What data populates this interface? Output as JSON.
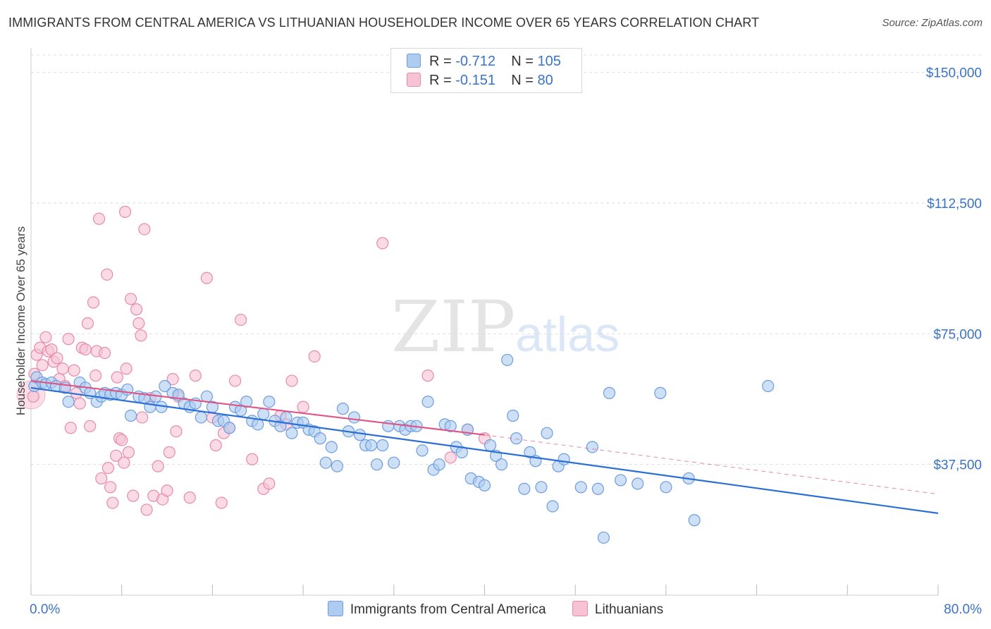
{
  "header": {
    "title": "IMMIGRANTS FROM CENTRAL AMERICA VS LITHUANIAN HOUSEHOLDER INCOME OVER 65 YEARS CORRELATION CHART",
    "source": "Source: ZipAtlas.com"
  },
  "watermark": {
    "zip": "ZIP",
    "atlas": "atlas"
  },
  "legend": {
    "rows": [
      {
        "r_label": "R = ",
        "r_value": "-0.712",
        "n_label": "N = ",
        "n_value": "105"
      },
      {
        "r_label": "R = ",
        "r_value": "-0.151",
        "n_label": "N = ",
        "n_value": "80"
      }
    ]
  },
  "colors": {
    "blue_fill": "#aecbf0",
    "blue_stroke": "#6c9de0",
    "blue_line": "#2c6fd4",
    "pink_fill": "#f7c3d4",
    "pink_stroke": "#e88aab",
    "pink_line": "#e05585",
    "axis_text": "#3a73c8",
    "grid": "#dddddd"
  },
  "chart_data": {
    "type": "scatter",
    "title": "IMMIGRANTS FROM CENTRAL AMERICA VS LITHUANIAN HOUSEHOLDER INCOME OVER 65 YEARS CORRELATION CHART",
    "xlabel": "",
    "ylabel": "Householder Income Over 65 years",
    "xlim": [
      0,
      80
    ],
    "ylim": [
      0,
      155000
    ],
    "x_tick_labels": [
      "0.0%",
      "80.0%"
    ],
    "y_ticks": [
      37500,
      75000,
      112500,
      150000
    ],
    "y_tick_labels": [
      "$37,500",
      "$75,000",
      "$112,500",
      "$150,000"
    ],
    "grid": true,
    "legend_position": "bottom",
    "series": [
      {
        "name": "Immigrants from Central America",
        "color": "#6c9de0",
        "trend": {
          "x": [
            0,
            80
          ],
          "y": [
            59500,
            23500
          ]
        },
        "points": [
          [
            0.3,
            60000
          ],
          [
            0.5,
            62500
          ],
          [
            1.0,
            61000
          ],
          [
            1.3,
            60500
          ],
          [
            1.8,
            61000
          ],
          [
            2.2,
            60000
          ],
          [
            3.0,
            59500
          ],
          [
            3.3,
            55500
          ],
          [
            4.3,
            61000
          ],
          [
            4.8,
            59500
          ],
          [
            5.2,
            58000
          ],
          [
            5.8,
            55500
          ],
          [
            6.2,
            57000
          ],
          [
            6.5,
            58000
          ],
          [
            7.0,
            57500
          ],
          [
            7.5,
            58000
          ],
          [
            8.0,
            57500
          ],
          [
            8.5,
            59000
          ],
          [
            8.8,
            51500
          ],
          [
            9.5,
            57000
          ],
          [
            10.0,
            56500
          ],
          [
            10.5,
            54000
          ],
          [
            11.0,
            57000
          ],
          [
            11.5,
            54000
          ],
          [
            11.8,
            60000
          ],
          [
            12.5,
            58000
          ],
          [
            13.0,
            57500
          ],
          [
            13.5,
            55000
          ],
          [
            14.0,
            54000
          ],
          [
            14.5,
            55000
          ],
          [
            15.0,
            51000
          ],
          [
            15.5,
            57000
          ],
          [
            16.0,
            54000
          ],
          [
            16.5,
            50000
          ],
          [
            17.0,
            50000
          ],
          [
            17.5,
            48000
          ],
          [
            18.0,
            54000
          ],
          [
            18.5,
            53000
          ],
          [
            19.0,
            55500
          ],
          [
            19.5,
            50000
          ],
          [
            20.0,
            49000
          ],
          [
            20.5,
            52000
          ],
          [
            21.0,
            55500
          ],
          [
            21.5,
            50000
          ],
          [
            22.0,
            48500
          ],
          [
            22.5,
            51000
          ],
          [
            23.0,
            46500
          ],
          [
            23.5,
            49500
          ],
          [
            24.0,
            49500
          ],
          [
            24.5,
            47500
          ],
          [
            25.0,
            47000
          ],
          [
            25.5,
            45000
          ],
          [
            26.0,
            38000
          ],
          [
            26.5,
            42500
          ],
          [
            27.0,
            37000
          ],
          [
            27.5,
            53500
          ],
          [
            28.0,
            47000
          ],
          [
            28.5,
            51000
          ],
          [
            29.0,
            46000
          ],
          [
            29.5,
            43000
          ],
          [
            30.0,
            43000
          ],
          [
            30.5,
            37500
          ],
          [
            31.0,
            43000
          ],
          [
            31.5,
            48500
          ],
          [
            32.0,
            38000
          ],
          [
            32.5,
            48500
          ],
          [
            33.0,
            47500
          ],
          [
            33.5,
            48500
          ],
          [
            34.0,
            48500
          ],
          [
            34.5,
            41500
          ],
          [
            35.0,
            55500
          ],
          [
            35.5,
            36000
          ],
          [
            36.0,
            37500
          ],
          [
            36.5,
            49000
          ],
          [
            37.0,
            48500
          ],
          [
            37.5,
            42500
          ],
          [
            38.0,
            41000
          ],
          [
            38.5,
            47500
          ],
          [
            38.8,
            33500
          ],
          [
            39.5,
            32500
          ],
          [
            40.0,
            31500
          ],
          [
            40.5,
            43000
          ],
          [
            41.0,
            40000
          ],
          [
            41.5,
            37500
          ],
          [
            42.0,
            67500
          ],
          [
            42.5,
            51500
          ],
          [
            42.8,
            45000
          ],
          [
            43.5,
            30500
          ],
          [
            44.0,
            41000
          ],
          [
            44.5,
            38500
          ],
          [
            45.0,
            31000
          ],
          [
            45.5,
            46500
          ],
          [
            46.0,
            25500
          ],
          [
            46.5,
            37000
          ],
          [
            47.0,
            39000
          ],
          [
            48.5,
            31000
          ],
          [
            49.5,
            42500
          ],
          [
            50.0,
            30500
          ],
          [
            50.5,
            16500
          ],
          [
            51.0,
            58000
          ],
          [
            52.0,
            33000
          ],
          [
            53.5,
            32000
          ],
          [
            55.5,
            58000
          ],
          [
            56.0,
            31000
          ],
          [
            58.0,
            33500
          ],
          [
            58.5,
            21500
          ],
          [
            65.0,
            60000
          ]
        ]
      },
      {
        "name": "Lithuanians",
        "color": "#e88aab",
        "trend": {
          "x": [
            0,
            40
          ],
          "y": [
            61500,
            46000
          ]
        },
        "trend_ext": {
          "x": [
            40,
            80
          ],
          "y": [
            46000,
            29000
          ]
        },
        "points": [
          [
            0.2,
            57000
          ],
          [
            0.3,
            63500
          ],
          [
            0.5,
            69000
          ],
          [
            0.8,
            71000
          ],
          [
            1.0,
            66000
          ],
          [
            1.3,
            74000
          ],
          [
            1.5,
            70000
          ],
          [
            1.8,
            70500
          ],
          [
            2.0,
            67000
          ],
          [
            2.3,
            68000
          ],
          [
            2.5,
            62000
          ],
          [
            2.8,
            65000
          ],
          [
            3.0,
            60000
          ],
          [
            3.3,
            73500
          ],
          [
            3.5,
            48000
          ],
          [
            3.8,
            64500
          ],
          [
            4.0,
            58000
          ],
          [
            4.3,
            55000
          ],
          [
            4.5,
            71000
          ],
          [
            4.8,
            70500
          ],
          [
            5.0,
            78000
          ],
          [
            5.2,
            48500
          ],
          [
            5.5,
            84000
          ],
          [
            5.7,
            63000
          ],
          [
            5.8,
            70000
          ],
          [
            6.0,
            108000
          ],
          [
            6.2,
            33500
          ],
          [
            6.5,
            69500
          ],
          [
            6.7,
            92000
          ],
          [
            6.8,
            36500
          ],
          [
            7.0,
            31000
          ],
          [
            7.2,
            26500
          ],
          [
            7.5,
            40000
          ],
          [
            7.6,
            62500
          ],
          [
            7.8,
            45000
          ],
          [
            8.0,
            44500
          ],
          [
            8.2,
            38000
          ],
          [
            8.3,
            110000
          ],
          [
            8.4,
            65000
          ],
          [
            8.6,
            41000
          ],
          [
            8.8,
            85000
          ],
          [
            9.0,
            28500
          ],
          [
            9.3,
            82000
          ],
          [
            9.5,
            78000
          ],
          [
            9.7,
            74500
          ],
          [
            9.8,
            51000
          ],
          [
            10.0,
            105000
          ],
          [
            10.2,
            24500
          ],
          [
            10.5,
            56500
          ],
          [
            10.8,
            28500
          ],
          [
            11.2,
            37000
          ],
          [
            11.6,
            27500
          ],
          [
            12.0,
            30000
          ],
          [
            12.2,
            41000
          ],
          [
            12.5,
            62000
          ],
          [
            12.8,
            47000
          ],
          [
            13.0,
            57000
          ],
          [
            14.0,
            28000
          ],
          [
            14.5,
            63000
          ],
          [
            15.5,
            91000
          ],
          [
            16.0,
            51000
          ],
          [
            16.3,
            43000
          ],
          [
            16.8,
            26500
          ],
          [
            17.0,
            46500
          ],
          [
            17.5,
            48000
          ],
          [
            18.0,
            61500
          ],
          [
            18.5,
            79000
          ],
          [
            19.5,
            39000
          ],
          [
            20.5,
            30500
          ],
          [
            21.0,
            32000
          ],
          [
            22.0,
            51500
          ],
          [
            22.5,
            49000
          ],
          [
            23.0,
            61500
          ],
          [
            24.0,
            54000
          ],
          [
            25.0,
            68500
          ],
          [
            31.0,
            101000
          ],
          [
            35.0,
            63000
          ],
          [
            37.0,
            39500
          ],
          [
            38.5,
            47500
          ],
          [
            40.0,
            45000
          ]
        ]
      }
    ]
  }
}
